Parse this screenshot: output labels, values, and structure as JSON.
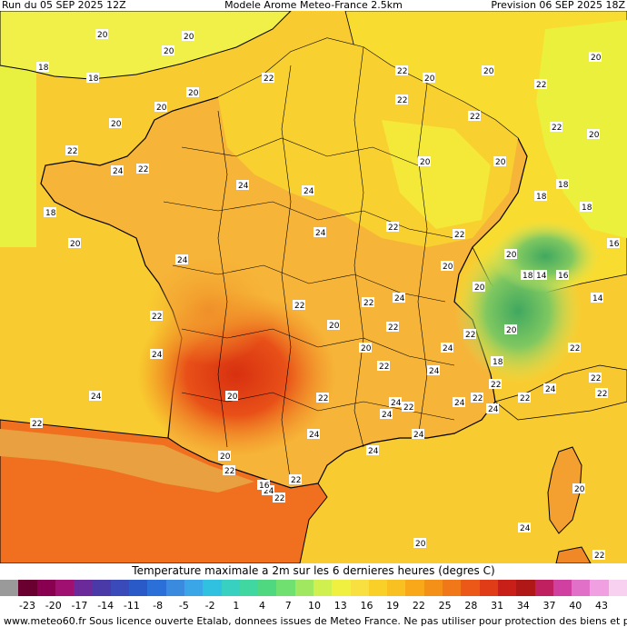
{
  "header": {
    "run": "Run du 05 SEP 2025 12Z",
    "model": "Modele Arome Meteo-France 2.5km",
    "forecast": "Prevision 06 SEP 2025 18Z"
  },
  "legend": {
    "title": "Temperature maximale a 2m sur les 6 dernieres heures (degres C)",
    "ticks": [
      "-23",
      "-20",
      "-17",
      "-14",
      "-11",
      "-8",
      "-5",
      "-2",
      "1",
      "4",
      "7",
      "10",
      "13",
      "16",
      "19",
      "22",
      "25",
      "28",
      "31",
      "34",
      "37",
      "40",
      "43"
    ],
    "colors": [
      "#9a9a9a",
      "#6a0030",
      "#8a0050",
      "#a01070",
      "#6a2a9a",
      "#4a3aa8",
      "#3a4ab8",
      "#2a5ac8",
      "#2a70d8",
      "#3a8ae0",
      "#3aa6e8",
      "#30c0e0",
      "#38d0c0",
      "#40d8a0",
      "#50d880",
      "#70e070",
      "#a0e860",
      "#d0f050",
      "#f0f040",
      "#f8e040",
      "#f8d028",
      "#f8c020",
      "#f8a818",
      "#f49018",
      "#f07818",
      "#ec5818",
      "#e03c18",
      "#c82018",
      "#b01818",
      "#c02060",
      "#d040a0",
      "#e070c8",
      "#f0a0e0",
      "#f8d0f0"
    ]
  },
  "footer": "www.meteo60.fr  Sous licence ouverte Etalab, donnees issues de Meteo France. Ne pas utiliser pour protection des biens et personnes",
  "map_labels": [
    "20",
    "18",
    "18",
    "20",
    "20",
    "20",
    "22",
    "22",
    "20",
    "22",
    "22",
    "20",
    "22",
    "20",
    "22",
    "24",
    "20",
    "20",
    "22",
    "22",
    "20",
    "18",
    "18",
    "20",
    "24",
    "20",
    "18",
    "20",
    "24",
    "24",
    "18",
    "20",
    "22",
    "22",
    "20",
    "24",
    "22",
    "24",
    "24",
    "22",
    "20",
    "22",
    "22",
    "22",
    "20",
    "22",
    "24",
    "24",
    "20",
    "20",
    "18",
    "14",
    "16",
    "14",
    "16",
    "22",
    "22",
    "22",
    "24",
    "20",
    "24",
    "22",
    "22",
    "24",
    "20",
    "22",
    "20",
    "22",
    "24",
    "24",
    "22",
    "24",
    "22",
    "24",
    "24",
    "22",
    "22",
    "18",
    "22",
    "16",
    "22",
    "20",
    "24",
    "24",
    "24"
  ]
}
